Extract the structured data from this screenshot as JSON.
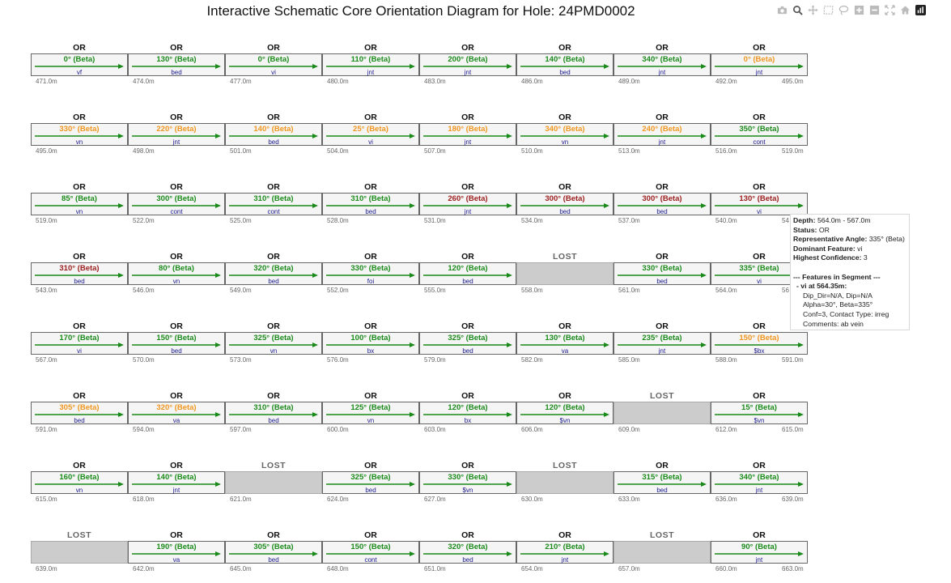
{
  "title": "Interactive Schematic Core Orientation Diagram for Hole: 24PMD0002",
  "toolbar": {
    "icons": [
      "camera-icon",
      "zoom-icon",
      "pan-icon",
      "box-select-icon",
      "lasso-select-icon",
      "zoom-in-icon",
      "zoom-out-icon",
      "autoscale-icon",
      "reset-axes-icon",
      "plotly-logo-icon"
    ]
  },
  "colors": {
    "green": "#1a8a1a",
    "orange": "#f0961e",
    "red": "#9b1c1c"
  },
  "rows": [
    {
      "end": "495.0m",
      "segments": [
        {
          "status": "OR",
          "angle": "0° (Beta)",
          "color": "green",
          "feature": "vf",
          "depth": "471.0m"
        },
        {
          "status": "OR",
          "angle": "130° (Beta)",
          "color": "green",
          "feature": "bed",
          "depth": "474.0m"
        },
        {
          "status": "OR",
          "angle": "0° (Beta)",
          "color": "green",
          "feature": "vi",
          "depth": "477.0m"
        },
        {
          "status": "OR",
          "angle": "110° (Beta)",
          "color": "green",
          "feature": "jnt",
          "depth": "480.0m"
        },
        {
          "status": "OR",
          "angle": "200° (Beta)",
          "color": "green",
          "feature": "jnt",
          "depth": "483.0m"
        },
        {
          "status": "OR",
          "angle": "140° (Beta)",
          "color": "green",
          "feature": "bed",
          "depth": "486.0m"
        },
        {
          "status": "OR",
          "angle": "340° (Beta)",
          "color": "green",
          "feature": "jnt",
          "depth": "489.0m"
        },
        {
          "status": "OR",
          "angle": "0° (Beta)",
          "color": "orange",
          "feature": "jnt",
          "depth": "492.0m"
        }
      ]
    },
    {
      "end": "519.0m",
      "segments": [
        {
          "status": "OR",
          "angle": "330° (Beta)",
          "color": "orange",
          "feature": "vn",
          "depth": "495.0m"
        },
        {
          "status": "OR",
          "angle": "220° (Beta)",
          "color": "orange",
          "feature": "jnt",
          "depth": "498.0m"
        },
        {
          "status": "OR",
          "angle": "140° (Beta)",
          "color": "orange",
          "feature": "bed",
          "depth": "501.0m"
        },
        {
          "status": "OR",
          "angle": "25° (Beta)",
          "color": "orange",
          "feature": "vi",
          "depth": "504.0m"
        },
        {
          "status": "OR",
          "angle": "180° (Beta)",
          "color": "orange",
          "feature": "jnt",
          "depth": "507.0m"
        },
        {
          "status": "OR",
          "angle": "340° (Beta)",
          "color": "orange",
          "feature": "vn",
          "depth": "510.0m"
        },
        {
          "status": "OR",
          "angle": "240° (Beta)",
          "color": "orange",
          "feature": "jnt",
          "depth": "513.0m"
        },
        {
          "status": "OR",
          "angle": "350° (Beta)",
          "color": "green",
          "feature": "cont",
          "depth": "516.0m"
        }
      ]
    },
    {
      "end": "54",
      "segments": [
        {
          "status": "OR",
          "angle": "85° (Beta)",
          "color": "green",
          "feature": "vn",
          "depth": "519.0m"
        },
        {
          "status": "OR",
          "angle": "300° (Beta)",
          "color": "green",
          "feature": "cont",
          "depth": "522.0m"
        },
        {
          "status": "OR",
          "angle": "310° (Beta)",
          "color": "green",
          "feature": "cont",
          "depth": "525.0m"
        },
        {
          "status": "OR",
          "angle": "310° (Beta)",
          "color": "green",
          "feature": "bed",
          "depth": "528.0m"
        },
        {
          "status": "OR",
          "angle": "260° (Beta)",
          "color": "red",
          "feature": "jnt",
          "depth": "531.0m"
        },
        {
          "status": "OR",
          "angle": "300° (Beta)",
          "color": "red",
          "feature": "bed",
          "depth": "534.0m"
        },
        {
          "status": "OR",
          "angle": "300° (Beta)",
          "color": "red",
          "feature": "bed",
          "depth": "537.0m"
        },
        {
          "status": "OR",
          "angle": "130° (Beta)",
          "color": "red",
          "feature": "vi",
          "depth": "540.0m"
        }
      ]
    },
    {
      "end": "56",
      "segments": [
        {
          "status": "OR",
          "angle": "310° (Beta)",
          "color": "red",
          "feature": "bed",
          "depth": "543.0m"
        },
        {
          "status": "OR",
          "angle": "80° (Beta)",
          "color": "green",
          "feature": "vn",
          "depth": "546.0m"
        },
        {
          "status": "OR",
          "angle": "320° (Beta)",
          "color": "green",
          "feature": "bed",
          "depth": "549.0m"
        },
        {
          "status": "OR",
          "angle": "330° (Beta)",
          "color": "green",
          "feature": "foi",
          "depth": "552.0m"
        },
        {
          "status": "OR",
          "angle": "120° (Beta)",
          "color": "green",
          "feature": "bed",
          "depth": "555.0m"
        },
        {
          "status": "LOST",
          "angle": "",
          "color": "",
          "feature": "",
          "depth": "558.0m"
        },
        {
          "status": "OR",
          "angle": "330° (Beta)",
          "color": "green",
          "feature": "bed",
          "depth": "561.0m"
        },
        {
          "status": "OR",
          "angle": "335° (Beta)",
          "color": "green",
          "feature": "vi",
          "depth": "564.0m"
        }
      ]
    },
    {
      "end": "591.0m",
      "segments": [
        {
          "status": "OR",
          "angle": "170° (Beta)",
          "color": "green",
          "feature": "vi",
          "depth": "567.0m"
        },
        {
          "status": "OR",
          "angle": "150° (Beta)",
          "color": "green",
          "feature": "bed",
          "depth": "570.0m"
        },
        {
          "status": "OR",
          "angle": "325° (Beta)",
          "color": "green",
          "feature": "vn",
          "depth": "573.0m"
        },
        {
          "status": "OR",
          "angle": "100° (Beta)",
          "color": "green",
          "feature": "bx",
          "depth": "576.0m"
        },
        {
          "status": "OR",
          "angle": "325° (Beta)",
          "color": "green",
          "feature": "bed",
          "depth": "579.0m"
        },
        {
          "status": "OR",
          "angle": "130° (Beta)",
          "color": "green",
          "feature": "va",
          "depth": "582.0m"
        },
        {
          "status": "OR",
          "angle": "235° (Beta)",
          "color": "green",
          "feature": "jnt",
          "depth": "585.0m"
        },
        {
          "status": "OR",
          "angle": "150° (Beta)",
          "color": "orange",
          "feature": "$bx",
          "depth": "588.0m"
        }
      ]
    },
    {
      "end": "615.0m",
      "segments": [
        {
          "status": "OR",
          "angle": "305° (Beta)",
          "color": "orange",
          "feature": "bed",
          "depth": "591.0m"
        },
        {
          "status": "OR",
          "angle": "320° (Beta)",
          "color": "orange",
          "feature": "va",
          "depth": "594.0m"
        },
        {
          "status": "OR",
          "angle": "310° (Beta)",
          "color": "green",
          "feature": "bed",
          "depth": "597.0m"
        },
        {
          "status": "OR",
          "angle": "125° (Beta)",
          "color": "green",
          "feature": "vn",
          "depth": "600.0m"
        },
        {
          "status": "OR",
          "angle": "120° (Beta)",
          "color": "green",
          "feature": "bx",
          "depth": "603.0m"
        },
        {
          "status": "OR",
          "angle": "120° (Beta)",
          "color": "green",
          "feature": "$vn",
          "depth": "606.0m"
        },
        {
          "status": "LOST",
          "angle": "",
          "color": "",
          "feature": "",
          "depth": "609.0m"
        },
        {
          "status": "OR",
          "angle": "15° (Beta)",
          "color": "green",
          "feature": "$vn",
          "depth": "612.0m"
        }
      ]
    },
    {
      "end": "639.0m",
      "segments": [
        {
          "status": "OR",
          "angle": "160° (Beta)",
          "color": "green",
          "feature": "vn",
          "depth": "615.0m"
        },
        {
          "status": "OR",
          "angle": "140° (Beta)",
          "color": "green",
          "feature": "jnt",
          "depth": "618.0m"
        },
        {
          "status": "LOST",
          "angle": "",
          "color": "",
          "feature": "",
          "depth": "621.0m"
        },
        {
          "status": "OR",
          "angle": "325° (Beta)",
          "color": "green",
          "feature": "bed",
          "depth": "624.0m"
        },
        {
          "status": "OR",
          "angle": "330° (Beta)",
          "color": "green",
          "feature": "$vn",
          "depth": "627.0m"
        },
        {
          "status": "LOST",
          "angle": "",
          "color": "",
          "feature": "",
          "depth": "630.0m"
        },
        {
          "status": "OR",
          "angle": "315° (Beta)",
          "color": "green",
          "feature": "bed",
          "depth": "633.0m"
        },
        {
          "status": "OR",
          "angle": "340° (Beta)",
          "color": "green",
          "feature": "jnt",
          "depth": "636.0m"
        }
      ]
    },
    {
      "end": "663.0m",
      "segments": [
        {
          "status": "LOST",
          "angle": "",
          "color": "",
          "feature": "",
          "depth": "639.0m"
        },
        {
          "status": "OR",
          "angle": "190° (Beta)",
          "color": "green",
          "feature": "va",
          "depth": "642.0m"
        },
        {
          "status": "OR",
          "angle": "305° (Beta)",
          "color": "green",
          "feature": "bed",
          "depth": "645.0m"
        },
        {
          "status": "OR",
          "angle": "150° (Beta)",
          "color": "green",
          "feature": "cont",
          "depth": "648.0m"
        },
        {
          "status": "OR",
          "angle": "320° (Beta)",
          "color": "green",
          "feature": "bed",
          "depth": "651.0m"
        },
        {
          "status": "OR",
          "angle": "210° (Beta)",
          "color": "green",
          "feature": "jnt",
          "depth": "654.0m"
        },
        {
          "status": "LOST",
          "angle": "",
          "color": "",
          "feature": "",
          "depth": "657.0m"
        },
        {
          "status": "OR",
          "angle": "90° (Beta)",
          "color": "green",
          "feature": "jnt",
          "depth": "660.0m"
        }
      ]
    }
  ],
  "tooltip": {
    "depth_label": "Depth:",
    "depth_value": "564.0m - 567.0m",
    "status_label": "Status:",
    "status_value": "OR",
    "angle_label": "Representative Angle:",
    "angle_value": "335° (Beta)",
    "dominant_label": "Dominant Feature:",
    "dominant_value": "vi",
    "confidence_label": "Highest Confidence:",
    "confidence_value": "3",
    "features_header": "--- Features in Segment ---",
    "feature_line": "- vi at 564.35m:",
    "dip_line": "Dip_Dir=N/A, Dip=N/A",
    "alpha_line": "Alpha=30°, Beta=335°",
    "conf_line": "Conf=3, Contact Type: irreg",
    "comments_line": "Comments: ab vein"
  }
}
